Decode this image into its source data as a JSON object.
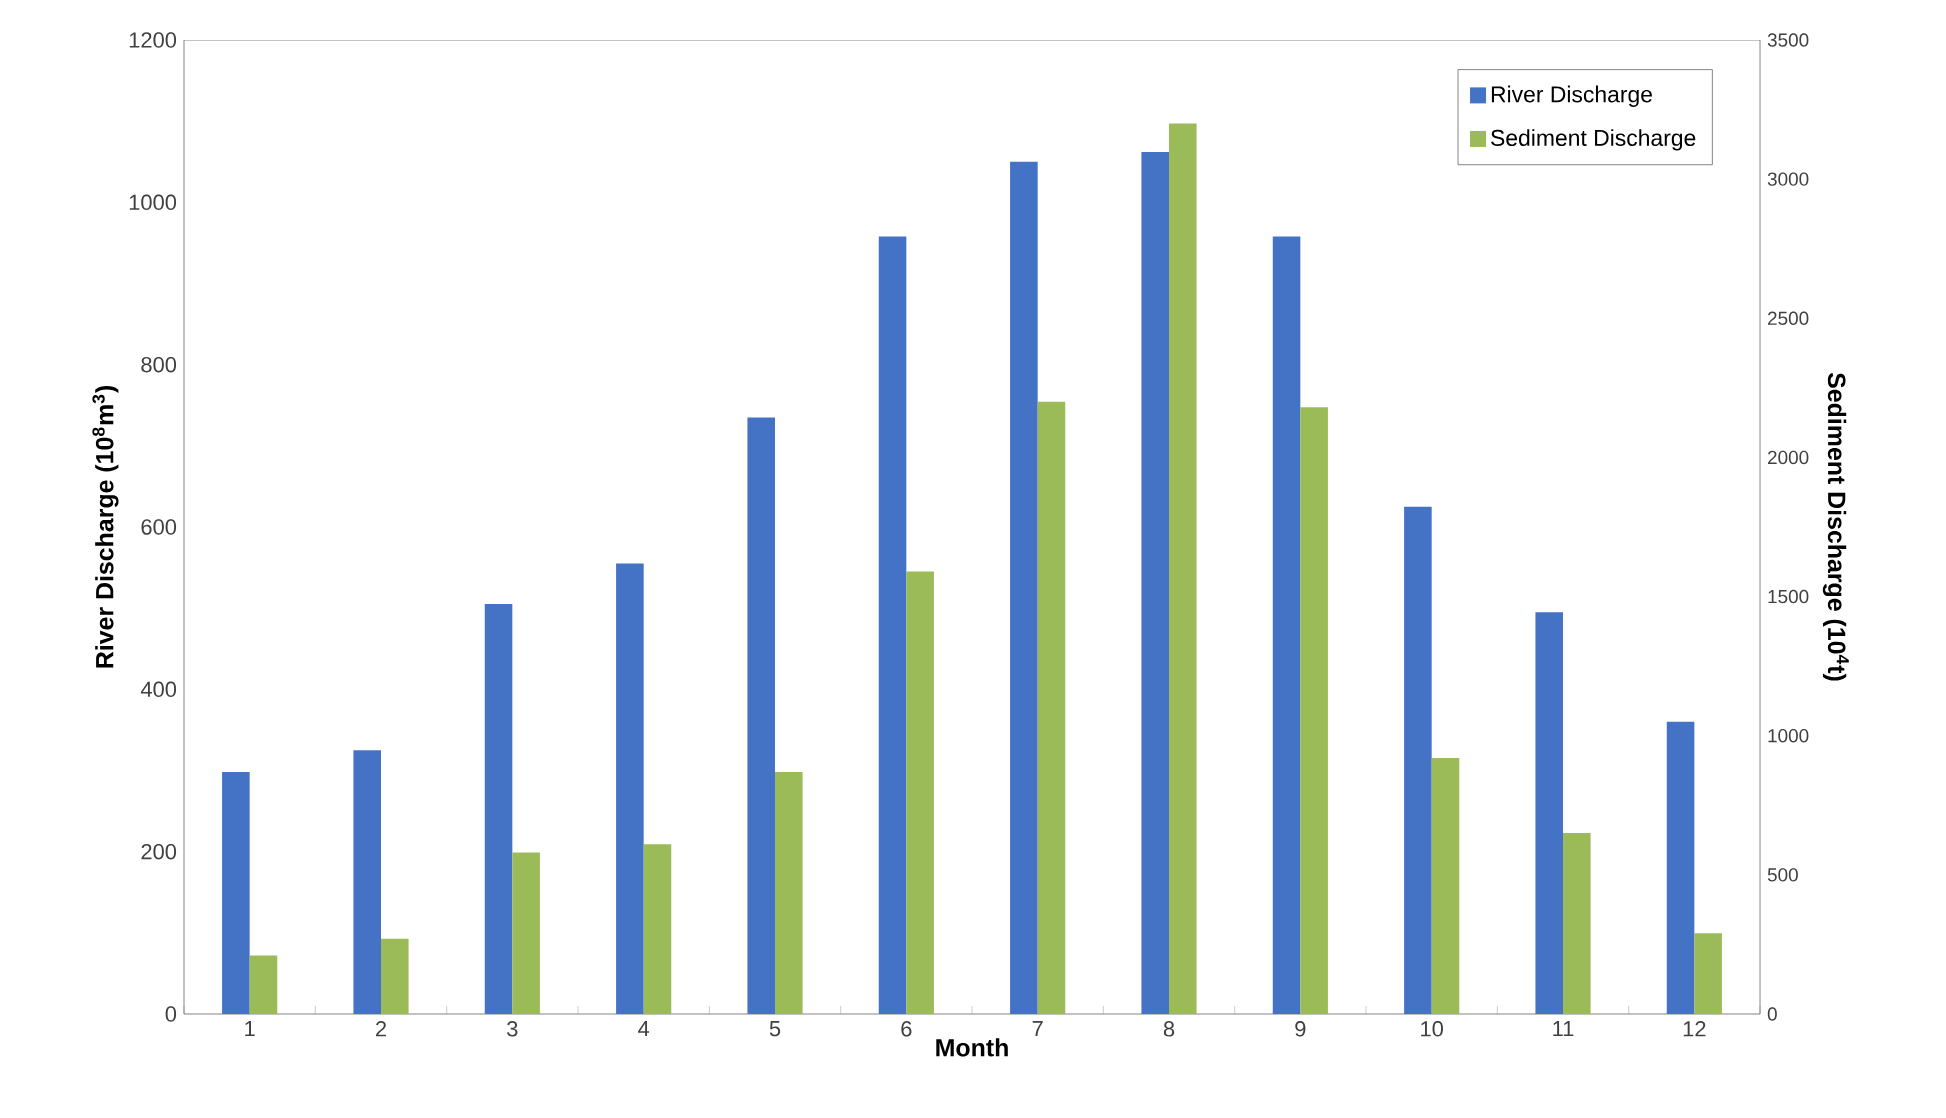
{
  "chart_data": {
    "type": "bar",
    "xlabel": "Month",
    "ylabel": "River Discharge (10$^{8}$m$^{3}$)",
    "y2label": "Sediment Discharge (10$^{4}$t)",
    "categories": [
      "1",
      "2",
      "3",
      "4",
      "5",
      "6",
      "7",
      "8",
      "9",
      "10",
      "11",
      "12"
    ],
    "series": [
      {
        "name": "River Discharge",
        "color": "#4472c4",
        "values": [
          298,
          325,
          505,
          555,
          735,
          958,
          1050,
          1062,
          958,
          625,
          495,
          360
        ]
      },
      {
        "name": "Sediment Discharge",
        "color": "#9bbb59",
        "axis": "y2",
        "values": [
          210,
          270,
          580,
          610,
          870,
          1590,
          2200,
          3200,
          2180,
          920,
          650,
          290
        ]
      }
    ],
    "ylim": [
      0,
      1200
    ],
    "yticks": [
      0,
      200,
      400,
      600,
      800,
      1000,
      1200
    ],
    "y2lim": [
      0,
      3500
    ],
    "y2ticks": [
      0,
      500,
      1000,
      1500,
      2000,
      2500,
      3000,
      3500
    ],
    "legend": "top right",
    "grid": false
  }
}
